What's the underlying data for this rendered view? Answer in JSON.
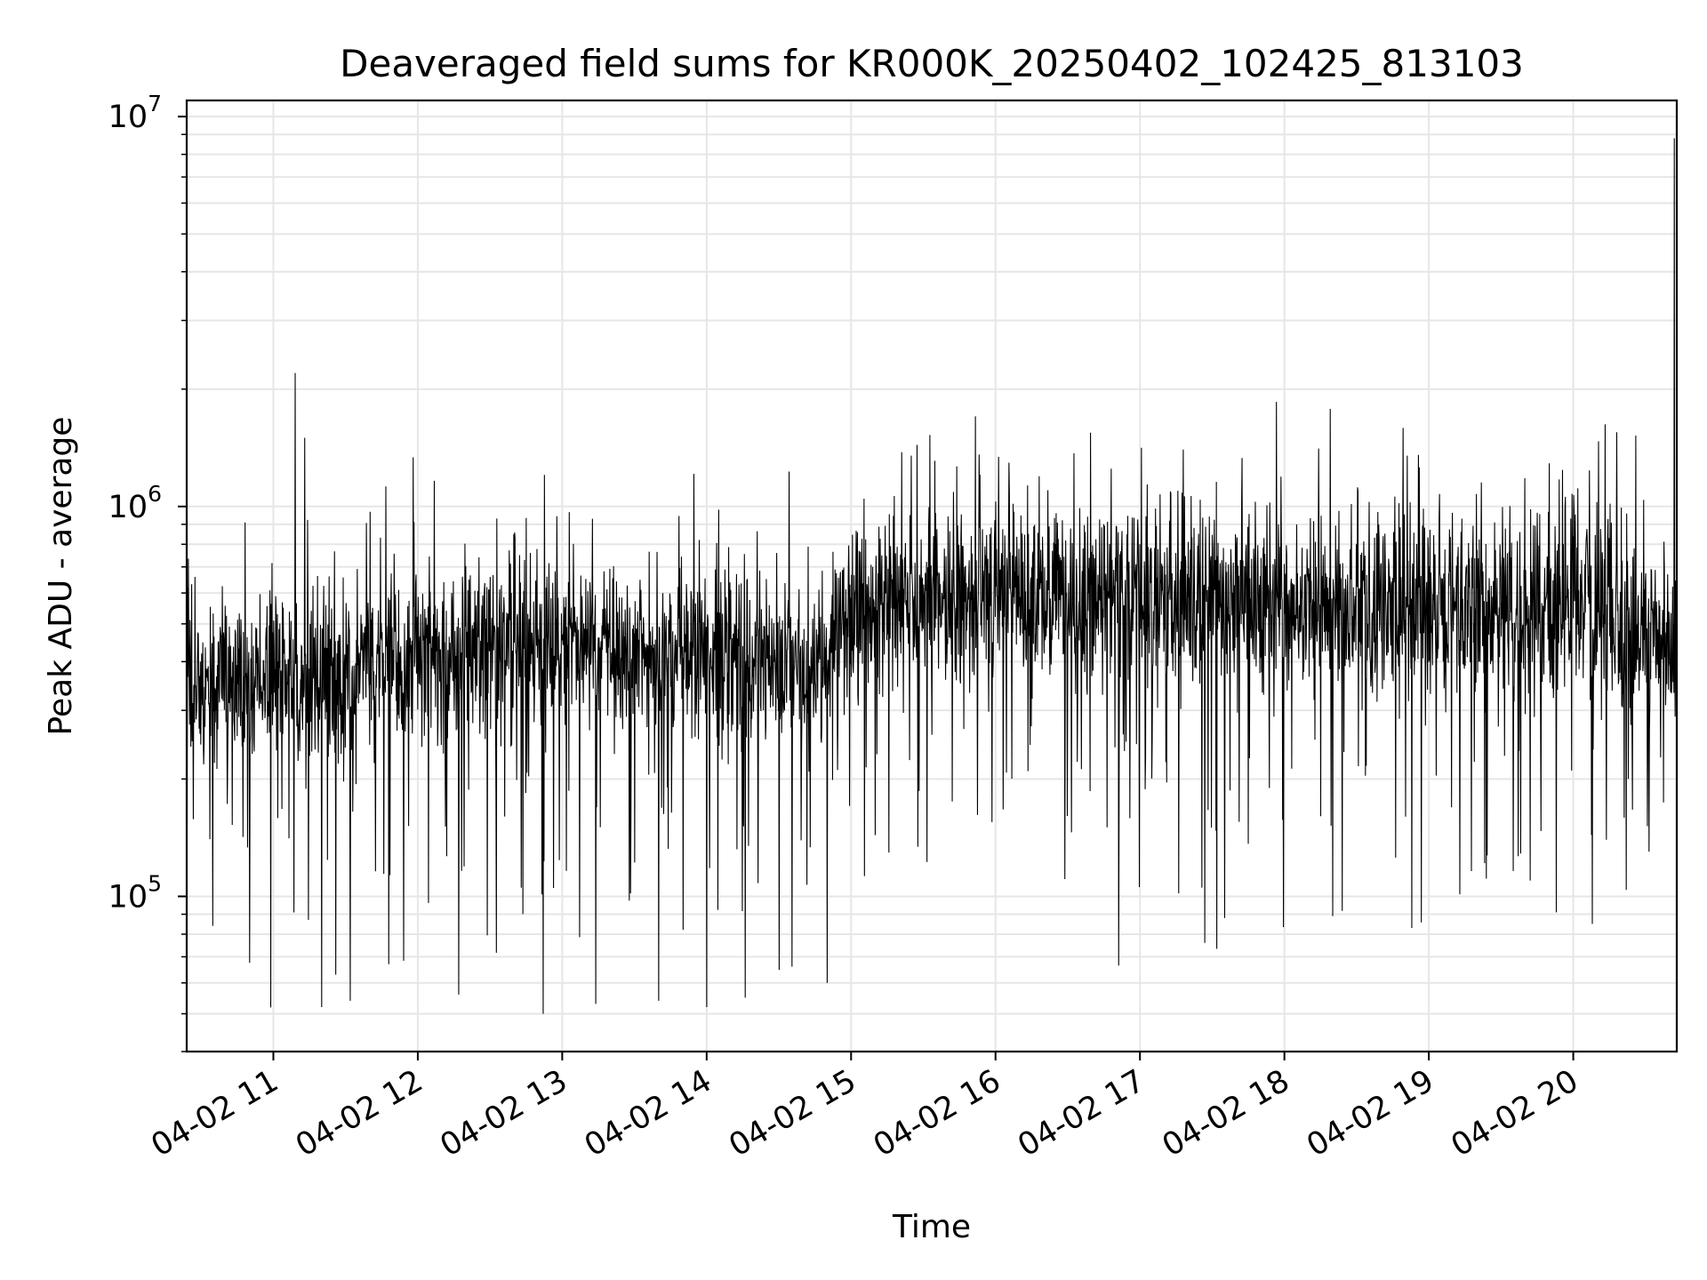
{
  "chart_data": {
    "type": "line",
    "title": "Deaveraged field sums for KR000K_20250402_102425_813103",
    "xlabel": "Time",
    "ylabel": "Peak ADU - average",
    "x_range": [
      "2025-04-02T10:24",
      "2025-04-02T20:43"
    ],
    "ylim": [
      40000,
      11000000
    ],
    "yscale": "log",
    "grid": true,
    "line_color": "#000000",
    "grid_color": "#e6e6e6",
    "x_ticks": [
      {
        "time": "2025-04-02T11:00",
        "label": "04-02 11"
      },
      {
        "time": "2025-04-02T12:00",
        "label": "04-02 12"
      },
      {
        "time": "2025-04-02T13:00",
        "label": "04-02 13"
      },
      {
        "time": "2025-04-02T14:00",
        "label": "04-02 14"
      },
      {
        "time": "2025-04-02T15:00",
        "label": "04-02 15"
      },
      {
        "time": "2025-04-02T16:00",
        "label": "04-02 16"
      },
      {
        "time": "2025-04-02T17:00",
        "label": "04-02 17"
      },
      {
        "time": "2025-04-02T18:00",
        "label": "04-02 18"
      },
      {
        "time": "2025-04-02T19:00",
        "label": "04-02 19"
      },
      {
        "time": "2025-04-02T20:00",
        "label": "04-02 20"
      }
    ],
    "y_ticks": [
      {
        "value": 100000,
        "base": "10",
        "exp": "5"
      },
      {
        "value": 1000000,
        "base": "10",
        "exp": "6"
      },
      {
        "value": 10000000,
        "base": "10",
        "exp": "7"
      }
    ],
    "series": [
      {
        "baseline": [
          {
            "time": "2025-04-02T10:24",
            "value": 330000
          },
          {
            "time": "2025-04-02T11:00",
            "value": 380000
          },
          {
            "time": "2025-04-02T11:30",
            "value": 360000
          },
          {
            "time": "2025-04-02T12:00",
            "value": 400000
          },
          {
            "time": "2025-04-02T12:30",
            "value": 450000
          },
          {
            "time": "2025-04-02T13:00",
            "value": 440000
          },
          {
            "time": "2025-04-02T13:30",
            "value": 420000
          },
          {
            "time": "2025-04-02T14:00",
            "value": 430000
          },
          {
            "time": "2025-04-02T14:30",
            "value": 400000
          },
          {
            "time": "2025-04-02T14:50",
            "value": 390000
          },
          {
            "time": "2025-04-02T15:00",
            "value": 550000
          },
          {
            "time": "2025-04-02T15:30",
            "value": 570000
          },
          {
            "time": "2025-04-02T16:00",
            "value": 600000
          },
          {
            "time": "2025-04-02T16:30",
            "value": 580000
          },
          {
            "time": "2025-04-02T17:00",
            "value": 600000
          },
          {
            "time": "2025-04-02T17:30",
            "value": 560000
          },
          {
            "time": "2025-04-02T18:00",
            "value": 580000
          },
          {
            "time": "2025-04-02T18:30",
            "value": 560000
          },
          {
            "time": "2025-04-02T19:00",
            "value": 540000
          },
          {
            "time": "2025-04-02T19:30",
            "value": 550000
          },
          {
            "time": "2025-04-02T20:00",
            "value": 560000
          },
          {
            "time": "2025-04-02T20:20",
            "value": 520000
          },
          {
            "time": "2025-04-02T20:25",
            "value": 430000
          },
          {
            "time": "2025-04-02T20:43",
            "value": 450000
          }
        ],
        "peaks": [
          {
            "time": "2025-04-02T11:09",
            "value": 2200000
          },
          {
            "time": "2025-04-02T11:13",
            "value": 1500000
          },
          {
            "time": "2025-04-02T15:25",
            "value": 1350000
          },
          {
            "time": "2025-04-02T16:48",
            "value": 1250000
          },
          {
            "time": "2025-04-02T17:18",
            "value": 1400000
          },
          {
            "time": "2025-04-02T18:19",
            "value": 1780000
          },
          {
            "time": "2025-04-02T18:51",
            "value": 1350000
          },
          {
            "time": "2025-04-02T19:50",
            "value": 1290000
          },
          {
            "time": "2025-04-02T20:18",
            "value": 1550000
          },
          {
            "time": "2025-04-02T20:26",
            "value": 1520000
          },
          {
            "time": "2025-04-02T20:42",
            "value": 8800000
          },
          {
            "time": "2025-04-02T20:43",
            "value": 1850000
          }
        ],
        "troughs": [
          {
            "time": "2025-04-02T11:20",
            "value": 52000
          },
          {
            "time": "2025-04-02T11:09",
            "value": 68000
          },
          {
            "time": "2025-04-02T11:26",
            "value": 63000
          },
          {
            "time": "2025-04-02T11:32",
            "value": 54000
          },
          {
            "time": "2025-04-02T11:48",
            "value": 67000
          },
          {
            "time": "2025-04-02T12:17",
            "value": 56000
          },
          {
            "time": "2025-04-02T12:52",
            "value": 50000
          },
          {
            "time": "2025-04-02T13:14",
            "value": 53000
          },
          {
            "time": "2025-04-02T13:40",
            "value": 54000
          },
          {
            "time": "2025-04-02T14:00",
            "value": 52000
          },
          {
            "time": "2025-04-02T14:16",
            "value": 55000
          },
          {
            "time": "2025-04-02T14:50",
            "value": 60000
          },
          {
            "time": "2025-04-02T17:27",
            "value": 76000
          },
          {
            "time": "2025-04-02T18:20",
            "value": 89000
          },
          {
            "time": "2025-04-02T18:53",
            "value": 83000
          },
          {
            "time": "2025-04-02T19:53",
            "value": 91000
          }
        ]
      }
    ]
  }
}
